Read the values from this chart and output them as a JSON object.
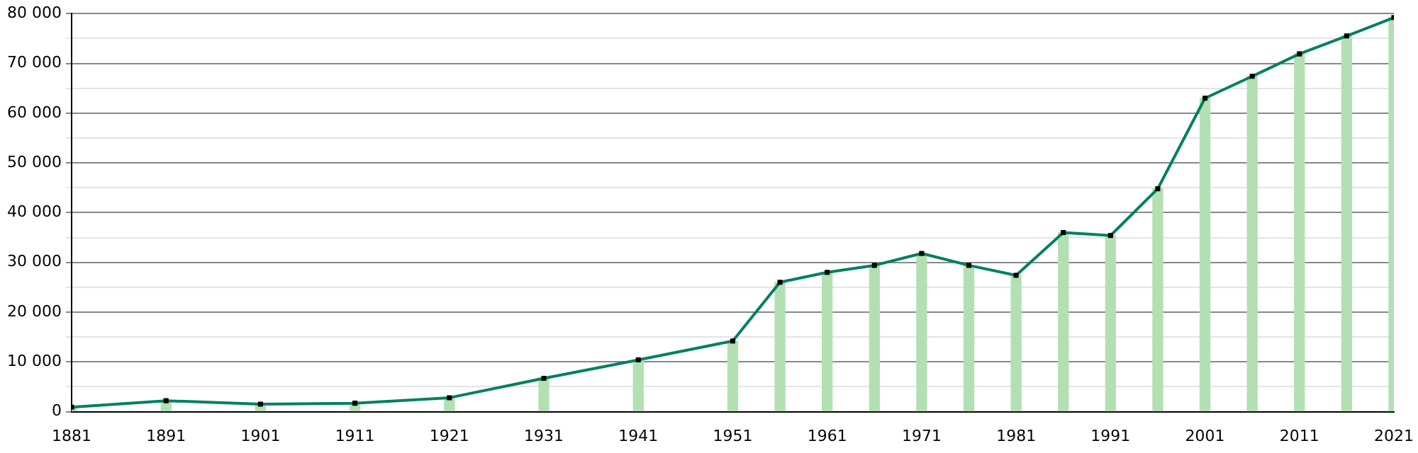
{
  "chart_data": {
    "type": "line",
    "x": [
      1881,
      1891,
      1901,
      1911,
      1921,
      1931,
      1941,
      1951,
      1956,
      1961,
      1966,
      1971,
      1976,
      1981,
      1986,
      1991,
      1996,
      2001,
      2006,
      2011,
      2016,
      2021
    ],
    "series": [
      {
        "type": "bar",
        "color": "#b3e0b3",
        "values": [
          900,
          2200,
          1500,
          1700,
          2800,
          6700,
          10400,
          14200,
          26000,
          28000,
          29400,
          31800,
          29400,
          27400,
          36000,
          35400,
          44800,
          63000,
          67400,
          71900,
          75500,
          79200
        ]
      },
      {
        "color": "#008060",
        "marker": "square",
        "values": [
          900,
          2200,
          1500,
          1700,
          2800,
          6700,
          10400,
          14200,
          26000,
          28000,
          29400,
          31800,
          29400,
          27400,
          36000,
          35400,
          44800,
          63000,
          67400,
          71900,
          75500,
          79200
        ]
      }
    ],
    "xlim": [
      1881,
      2021
    ],
    "xticks": [
      1881,
      1891,
      1901,
      1911,
      1921,
      1931,
      1941,
      1951,
      1961,
      1971,
      1981,
      1991,
      2001,
      2011,
      2021
    ],
    "ylim": [
      0,
      80000
    ],
    "yticks": [
      0,
      {
        "value": 5000,
        "label": null
      },
      {
        "value": 10000,
        "label": "10 000"
      },
      {
        "value": 15000,
        "label": null
      },
      {
        "value": 20000,
        "label": "20 000"
      },
      {
        "value": 25000,
        "label": null
      },
      {
        "value": 30000,
        "label": "30 000"
      },
      {
        "value": 35000,
        "label": null
      },
      {
        "value": 40000,
        "label": "40 000"
      },
      {
        "value": 45000,
        "label": null
      },
      {
        "value": 50000,
        "label": "50 000"
      },
      {
        "value": 55000,
        "label": null
      },
      {
        "value": 60000,
        "label": "60 000"
      },
      {
        "value": 65000,
        "label": null
      },
      {
        "value": 70000,
        "label": "70 000"
      },
      {
        "value": 75000,
        "label": null
      },
      {
        "value": 80000,
        "label": "80 000"
      }
    ],
    "grid": "y",
    "legend": false
  }
}
